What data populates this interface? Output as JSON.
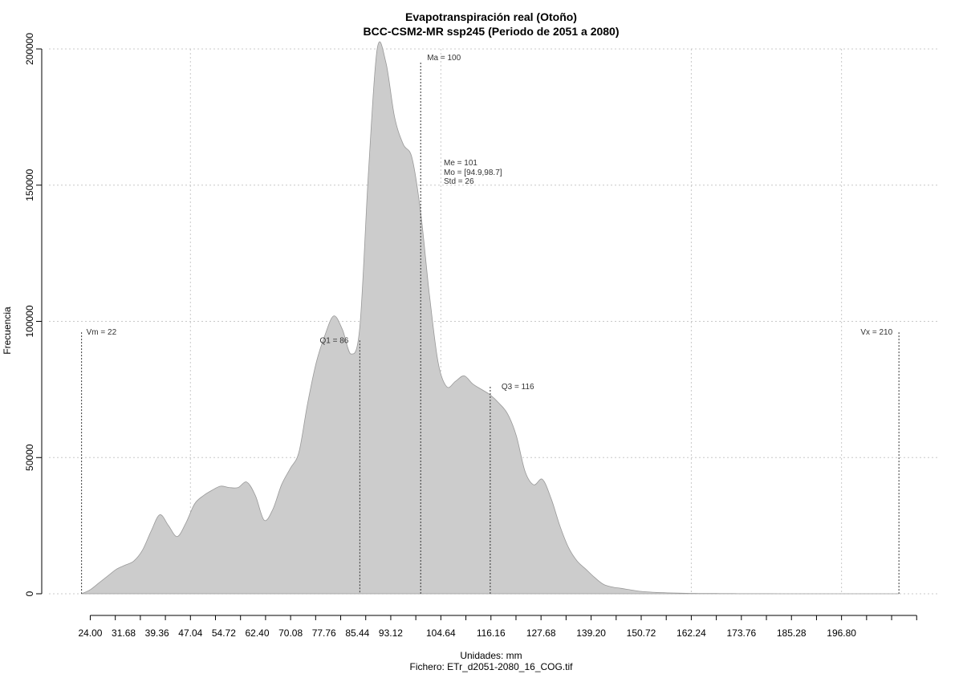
{
  "chart_data": {
    "type": "area",
    "title": "Evapotranspiración real (Otoño)",
    "subtitle": "BCC-CSM2-MR ssp245 (Periodo de 2051 a 2080)",
    "xlabel": "Unidades: mm",
    "ylabel": "Frecuencia",
    "caption": "Fichero: ETr_d2051-2080_16_COG.tif",
    "xlim": [
      14.5,
      219.2
    ],
    "ylim": [
      0,
      200000
    ],
    "x_ticks": [
      "24.00",
      "31.68",
      "39.36",
      "47.04",
      "54.72",
      "62.40",
      "70.08",
      "77.76",
      "85.44",
      "93.12",
      "104.64",
      "116.16",
      "127.68",
      "139.20",
      "150.72",
      "162.24",
      "173.76",
      "185.28",
      "196.80"
    ],
    "y_ticks": [
      "0",
      "50000",
      "100000",
      "150000",
      "200000"
    ],
    "grid": true,
    "fill_color": "#cccccc",
    "x": [
      22,
      24,
      26,
      28,
      30,
      32,
      34,
      36,
      38,
      40,
      42,
      44,
      46,
      48,
      50,
      52,
      54,
      56,
      58,
      60,
      62,
      64,
      66,
      68,
      70,
      72,
      74,
      76,
      78,
      80,
      82,
      84,
      86,
      88,
      90,
      92,
      94,
      96,
      98,
      100,
      102,
      104,
      106,
      108,
      110,
      112,
      114,
      116,
      118,
      120,
      122,
      124,
      126,
      128,
      130,
      132,
      134,
      136,
      138,
      140,
      142,
      144,
      146,
      148,
      150,
      152,
      154,
      156,
      158,
      160,
      162,
      164,
      166,
      168,
      170,
      172,
      174,
      176,
      178,
      180,
      185,
      190,
      195,
      200,
      205,
      210
    ],
    "y": [
      0,
      1500,
      4000,
      6500,
      9000,
      10500,
      12000,
      16000,
      23000,
      29000,
      25000,
      21000,
      26000,
      33000,
      36000,
      38000,
      39500,
      39000,
      39000,
      41000,
      36000,
      27000,
      31000,
      40000,
      46000,
      52000,
      70000,
      85000,
      95000,
      102000,
      97000,
      88000,
      98000,
      155000,
      200000,
      195000,
      175000,
      165000,
      160000,
      140000,
      110000,
      85000,
      76000,
      78000,
      80000,
      77000,
      75000,
      73000,
      70000,
      66000,
      58000,
      45000,
      40000,
      42000,
      35000,
      25000,
      17000,
      12000,
      9000,
      6000,
      3500,
      2500,
      2000,
      1500,
      1000,
      700,
      500,
      400,
      300,
      200,
      150,
      120,
      100,
      80,
      60,
      50,
      40,
      30,
      20,
      15,
      10,
      8,
      6,
      4,
      2,
      0
    ],
    "markers": [
      {
        "label": "Vm = 22",
        "x": 22,
        "y_top": 96000
      },
      {
        "label": "Q1 = 86",
        "x": 86,
        "y_top": 93000
      },
      {
        "label": "Ma = 100",
        "x": 100,
        "y_top": 195000
      },
      {
        "label": "Q3 = 116",
        "x": 116,
        "y_top": 76000
      },
      {
        "label": "Vx = 210",
        "x": 210,
        "y_top": 96000
      }
    ],
    "stats_block": [
      "Me = 101",
      "Mo = [94.9,98.7]",
      "Std = 26"
    ]
  }
}
